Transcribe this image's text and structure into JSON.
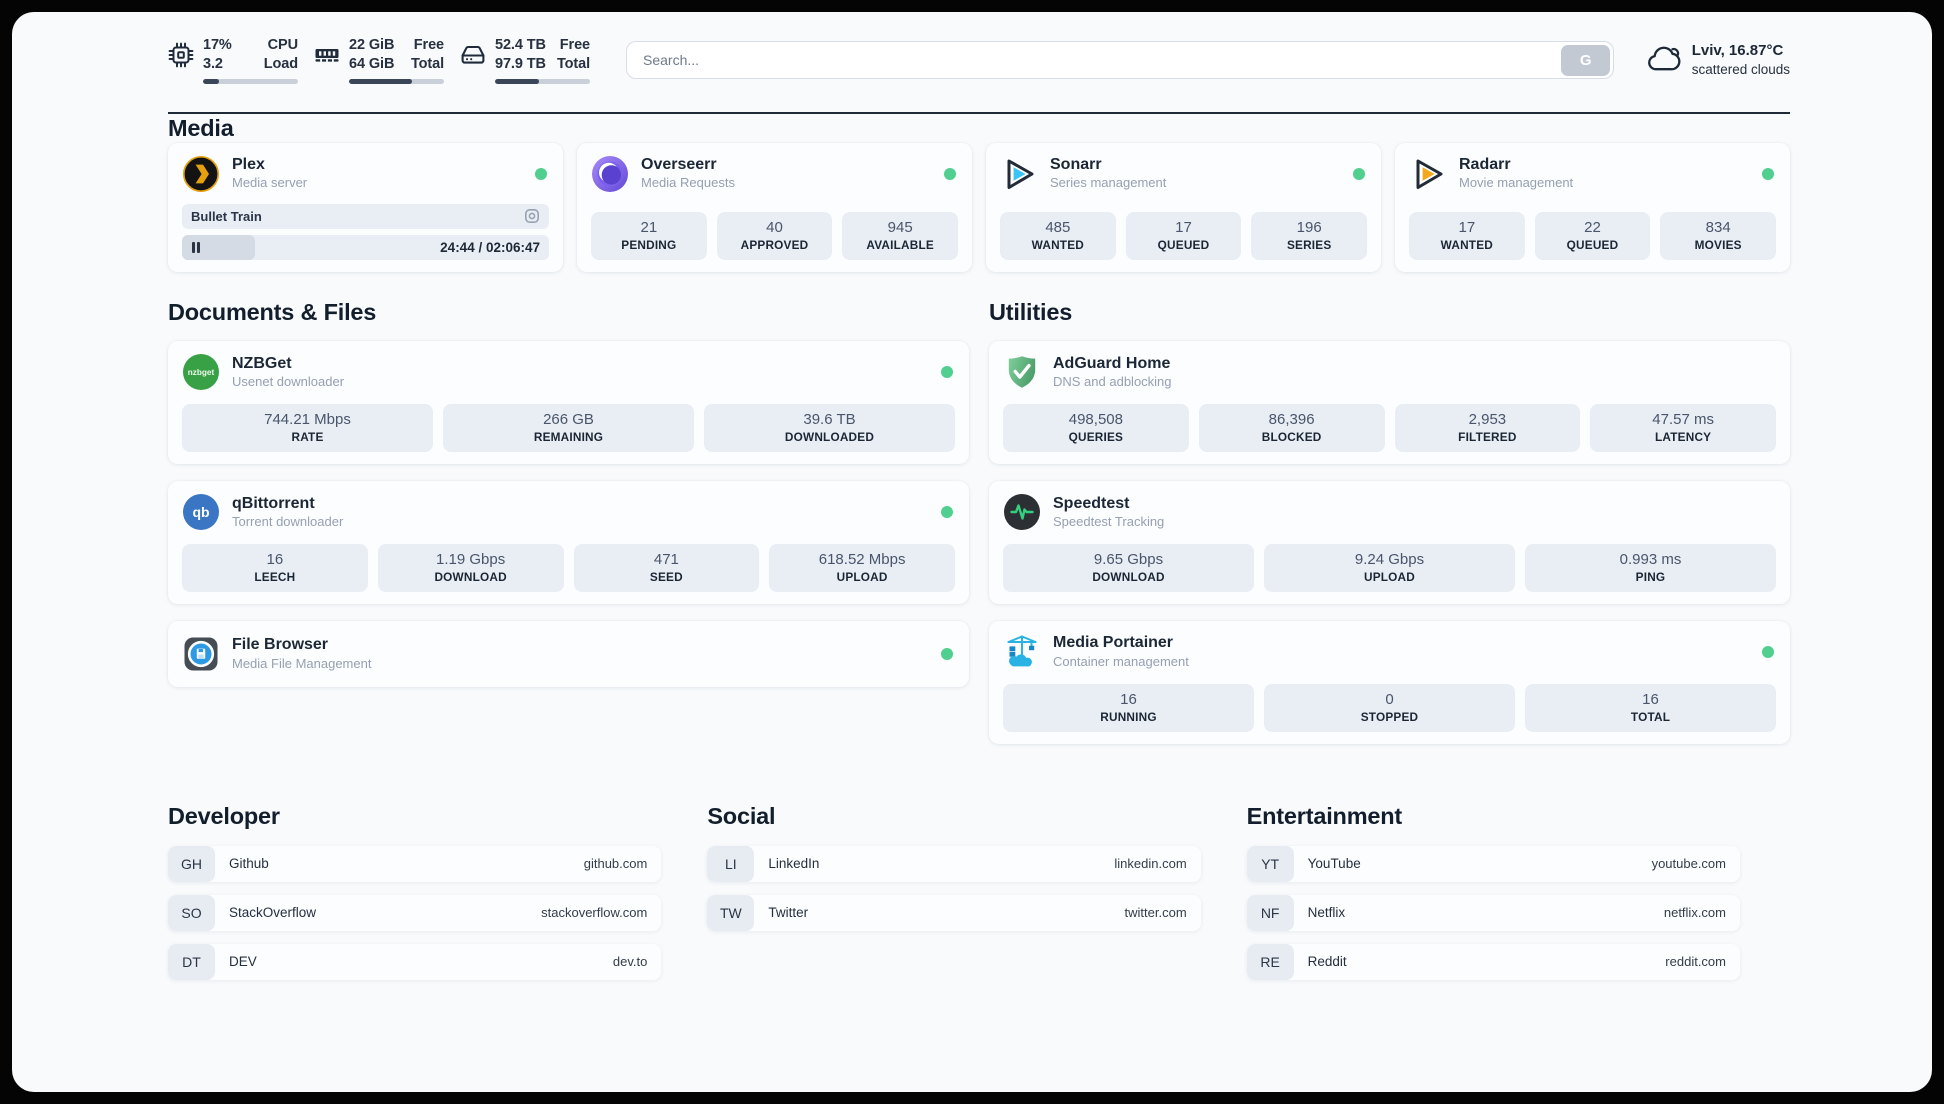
{
  "theme": {
    "panel_bg": "#f8fafc",
    "card_bg": "#fcfdff",
    "box_bg": "#e9eef5",
    "status_online": "#50cf8e",
    "bar_fill": "#3a4557",
    "bar_track": "#c9d0da"
  },
  "topbar": {
    "metrics": [
      {
        "id": "cpu",
        "v1": "17%",
        "l1": "CPU",
        "v2": "3.2",
        "l2": "Load",
        "percent": 17
      },
      {
        "id": "ram",
        "v1": "22 GiB",
        "l1": "Free",
        "v2": "64 GiB",
        "l2": "Total",
        "percent": 66
      },
      {
        "id": "disk",
        "v1": "52.4 TB",
        "l1": "Free",
        "v2": "97.9 TB",
        "l2": "Total",
        "percent": 46
      }
    ]
  },
  "search": {
    "placeholder": "Search...",
    "button": "G"
  },
  "weather": {
    "location": "Lviv, 16.87°C",
    "condition": "scattered clouds"
  },
  "sections": {
    "media": {
      "title": "Media",
      "apps": [
        {
          "name": "Plex",
          "subtitle": "Media server",
          "now_playing": "Bullet Train",
          "time": "24:44 / 02:06:47",
          "progress_percent": 20
        },
        {
          "name": "Overseerr",
          "subtitle": "Media Requests",
          "stats": [
            {
              "value": "21",
              "label": "PENDING"
            },
            {
              "value": "40",
              "label": "APPROVED"
            },
            {
              "value": "945",
              "label": "AVAILABLE"
            }
          ]
        },
        {
          "name": "Sonarr",
          "subtitle": "Series management",
          "stats": [
            {
              "value": "485",
              "label": "WANTED"
            },
            {
              "value": "17",
              "label": "QUEUED"
            },
            {
              "value": "196",
              "label": "SERIES"
            }
          ]
        },
        {
          "name": "Radarr",
          "subtitle": "Movie management",
          "stats": [
            {
              "value": "17",
              "label": "WANTED"
            },
            {
              "value": "22",
              "label": "QUEUED"
            },
            {
              "value": "834",
              "label": "MOVIES"
            }
          ]
        }
      ]
    },
    "documents": {
      "title": "Documents & Files",
      "apps": [
        {
          "name": "NZBGet",
          "subtitle": "Usenet downloader",
          "stats": [
            {
              "value": "744.21 Mbps",
              "label": "RATE"
            },
            {
              "value": "266 GB",
              "label": "REMAINING"
            },
            {
              "value": "39.6 TB",
              "label": "DOWNLOADED"
            }
          ]
        },
        {
          "name": "qBittorrent",
          "subtitle": "Torrent downloader",
          "stats": [
            {
              "value": "16",
              "label": "LEECH"
            },
            {
              "value": "1.19 Gbps",
              "label": "DOWNLOAD"
            },
            {
              "value": "471",
              "label": "SEED"
            },
            {
              "value": "618.52 Mbps",
              "label": "UPLOAD"
            }
          ]
        },
        {
          "name": "File Browser",
          "subtitle": "Media File Management"
        }
      ]
    },
    "utilities": {
      "title": "Utilities",
      "apps": [
        {
          "name": "AdGuard Home",
          "subtitle": "DNS and adblocking",
          "stats": [
            {
              "value": "498,508",
              "label": "QUERIES"
            },
            {
              "value": "86,396",
              "label": "BLOCKED"
            },
            {
              "value": "2,953",
              "label": "FILTERED"
            },
            {
              "value": "47.57 ms",
              "label": "LATENCY"
            }
          ]
        },
        {
          "name": "Speedtest",
          "subtitle": "Speedtest Tracking",
          "stats": [
            {
              "value": "9.65 Gbps",
              "label": "DOWNLOAD"
            },
            {
              "value": "9.24 Gbps",
              "label": "UPLOAD"
            },
            {
              "value": "0.993 ms",
              "label": "PING"
            }
          ]
        },
        {
          "name": "Media Portainer",
          "subtitle": "Container management",
          "stats": [
            {
              "value": "16",
              "label": "RUNNING"
            },
            {
              "value": "0",
              "label": "STOPPED"
            },
            {
              "value": "16",
              "label": "TOTAL"
            }
          ]
        }
      ]
    }
  },
  "links": [
    {
      "title": "Developer",
      "items": [
        {
          "badge": "GH",
          "name": "Github",
          "url": "github.com"
        },
        {
          "badge": "SO",
          "name": "StackOverflow",
          "url": "stackoverflow.com"
        },
        {
          "badge": "DT",
          "name": "DEV",
          "url": "dev.to"
        }
      ]
    },
    {
      "title": "Social",
      "items": [
        {
          "badge": "LI",
          "name": "LinkedIn",
          "url": "linkedin.com"
        },
        {
          "badge": "TW",
          "name": "Twitter",
          "url": "twitter.com"
        }
      ]
    },
    {
      "title": "Entertainment",
      "items": [
        {
          "badge": "YT",
          "name": "YouTube",
          "url": "youtube.com"
        },
        {
          "badge": "NF",
          "name": "Netflix",
          "url": "netflix.com"
        },
        {
          "badge": "RE",
          "name": "Reddit",
          "url": "reddit.com"
        }
      ]
    }
  ]
}
